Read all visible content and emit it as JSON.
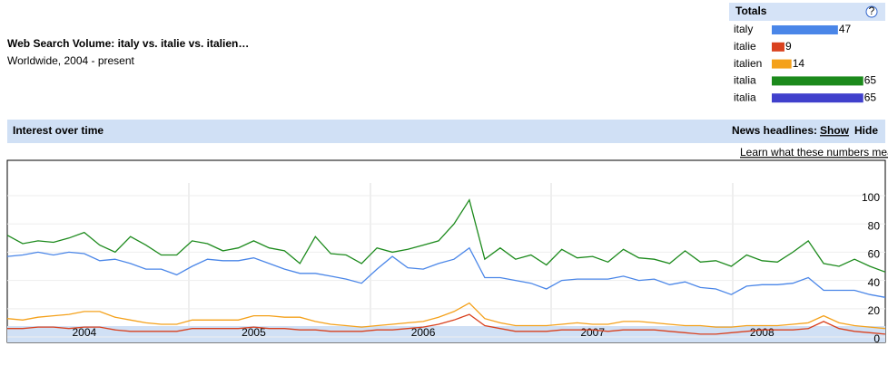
{
  "header": {
    "title": "Web Search Volume: italy vs. italie vs. italien…",
    "subtitle": "Worldwide, 2004 - present"
  },
  "totals": {
    "title": "Totals",
    "help": "?",
    "rows": [
      {
        "name": "italy",
        "value": 47,
        "color": "#4a86e8"
      },
      {
        "name": "italie",
        "value": 9,
        "color": "#d9411e"
      },
      {
        "name": "italien",
        "value": 14,
        "color": "#f4a11b"
      },
      {
        "name": "italia",
        "value": 65,
        "color": "#1c8a1c"
      },
      {
        "name": "italia",
        "value": 65,
        "color": "#4040cc"
      }
    ]
  },
  "section": {
    "title": "Interest over time",
    "news_label": "News headlines:",
    "show": "Show",
    "hide": "Hide",
    "learn": "Learn what these numbers mean"
  },
  "chart_data": {
    "type": "line",
    "categories": [
      null,
      null,
      null,
      null,
      null,
      "2004",
      null,
      null,
      null,
      null,
      null,
      null,
      null,
      null,
      null,
      null,
      "2005",
      null,
      null,
      null,
      null,
      null,
      null,
      null,
      null,
      null,
      null,
      "2006",
      null,
      null,
      null,
      null,
      null,
      null,
      null,
      null,
      null,
      null,
      "2007",
      null,
      null,
      null,
      null,
      null,
      null,
      null,
      null,
      null,
      null,
      "2008",
      null,
      null,
      null,
      null,
      null,
      null,
      null,
      null
    ],
    "series": [
      {
        "name": "italia",
        "color": "#1c8a1c",
        "values": [
          72,
          66,
          68,
          67,
          70,
          74,
          65,
          60,
          71,
          65,
          58,
          58,
          68,
          66,
          61,
          63,
          68,
          63,
          61,
          52,
          71,
          59,
          58,
          52,
          63,
          60,
          62,
          65,
          68,
          80,
          97,
          55,
          63,
          55,
          58,
          51,
          62,
          56,
          57,
          53,
          62,
          56,
          55,
          52,
          61,
          53,
          54,
          50,
          58,
          54,
          53,
          60,
          68,
          52,
          50,
          55,
          50,
          46
        ]
      },
      {
        "name": "italy",
        "color": "#4a86e8",
        "values": [
          57,
          58,
          60,
          58,
          60,
          59,
          54,
          55,
          52,
          48,
          48,
          44,
          50,
          55,
          54,
          54,
          56,
          52,
          48,
          45,
          45,
          43,
          41,
          38,
          48,
          57,
          49,
          48,
          52,
          55,
          63,
          42,
          42,
          40,
          38,
          34,
          40,
          41,
          41,
          41,
          43,
          40,
          41,
          37,
          39,
          35,
          34,
          30,
          36,
          37,
          37,
          38,
          42,
          33,
          33,
          33,
          30,
          28
        ]
      },
      {
        "name": "italien",
        "color": "#f4a11b",
        "values": [
          13,
          12,
          14,
          15,
          16,
          18,
          18,
          14,
          12,
          10,
          9,
          9,
          12,
          12,
          12,
          12,
          15,
          15,
          14,
          14,
          11,
          9,
          8,
          7,
          8,
          9,
          10,
          11,
          14,
          18,
          24,
          13,
          10,
          8,
          8,
          8,
          9,
          10,
          9,
          9,
          11,
          11,
          10,
          9,
          8,
          8,
          7,
          7,
          8,
          8,
          8,
          9,
          10,
          15,
          10,
          8,
          7,
          6
        ]
      },
      {
        "name": "italie",
        "color": "#d9411e",
        "values": [
          6,
          6,
          7,
          7,
          6,
          7,
          7,
          5,
          4,
          4,
          4,
          4,
          6,
          6,
          6,
          6,
          7,
          6,
          6,
          5,
          5,
          4,
          4,
          4,
          5,
          5,
          6,
          7,
          9,
          12,
          16,
          8,
          6,
          4,
          4,
          4,
          5,
          5,
          5,
          4,
          5,
          5,
          5,
          4,
          3,
          2,
          2,
          3,
          4,
          5,
          5,
          5,
          6,
          11,
          6,
          4,
          3,
          2
        ]
      }
    ],
    "ylim": [
      -3,
      125
    ],
    "yticks": [
      0,
      20,
      40,
      60,
      80,
      100
    ],
    "grid": true
  }
}
